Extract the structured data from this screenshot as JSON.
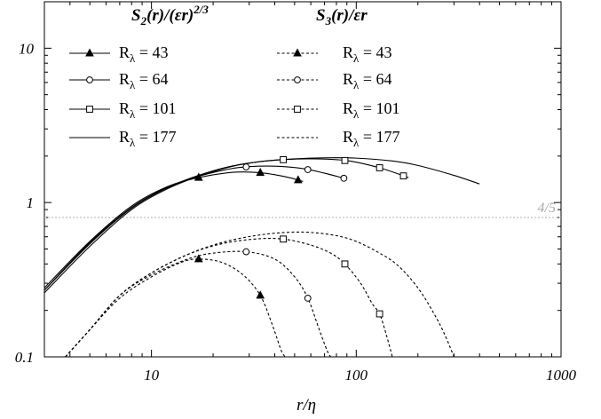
{
  "chart_data": {
    "type": "line",
    "xlabel": "r/η",
    "ylabel": "",
    "xscale": "log",
    "yscale": "log",
    "xlim": [
      3,
      1000
    ],
    "ylim": [
      0.1,
      20
    ],
    "x_ticks": [
      {
        "value": 10,
        "label": "10"
      },
      {
        "value": 100,
        "label": "100"
      },
      {
        "value": 1000,
        "label": "1000"
      }
    ],
    "y_ticks": [
      {
        "value": 0.1,
        "label": "0.1"
      },
      {
        "value": 1,
        "label": "1"
      },
      {
        "value": 10,
        "label": "10"
      }
    ],
    "grid": false,
    "legend_placement": "top",
    "legend_headings": {
      "s2": "S2(r)/(εr)2/3",
      "s3": "S3(r)/εr"
    },
    "legend_heading_parts": {
      "s2": {
        "s": "S",
        "sub": "2",
        "mid": "(r)/(εr)",
        "sup": "2/3"
      },
      "s3": {
        "s": "S",
        "sub": "3",
        "mid": "(r)/εr"
      }
    },
    "reference_line": {
      "y": 0.8,
      "label": "4/5",
      "color": "#b0b0b0"
    },
    "series": [
      {
        "name": "Rλ = 43",
        "legend_prefix": "R",
        "legend_sub": "λ",
        "legend_value": " = 43",
        "group": "S2",
        "line_style": "solid",
        "marker": "triangle",
        "x": [
          3,
          5,
          8,
          12,
          17,
          25,
          34,
          45,
          55
        ],
        "y": [
          0.28,
          0.56,
          0.95,
          1.27,
          1.45,
          1.57,
          1.56,
          1.47,
          1.37
        ],
        "marker_x": [
          17,
          34,
          52
        ]
      },
      {
        "name": "Rλ = 64",
        "legend_prefix": "R",
        "legend_sub": "λ",
        "legend_value": " = 64",
        "group": "S2",
        "line_style": "solid",
        "marker": "circle",
        "x": [
          3,
          5,
          8,
          12,
          17,
          24,
          30,
          40,
          55,
          70,
          90
        ],
        "y": [
          0.27,
          0.55,
          0.93,
          1.26,
          1.48,
          1.65,
          1.71,
          1.72,
          1.66,
          1.55,
          1.42
        ],
        "marker_x": [
          29,
          58,
          87
        ]
      },
      {
        "name": "Rλ = 101",
        "legend_prefix": "R",
        "legend_sub": "λ",
        "legend_value": " = 101",
        "group": "S2",
        "line_style": "solid",
        "marker": "square",
        "x": [
          3,
          5,
          8,
          12,
          17,
          25,
          35,
          45,
          60,
          90,
          130,
          180
        ],
        "y": [
          0.27,
          0.54,
          0.92,
          1.25,
          1.5,
          1.73,
          1.85,
          1.9,
          1.92,
          1.87,
          1.68,
          1.45
        ],
        "marker_x": [
          44,
          88,
          130,
          170
        ]
      },
      {
        "name": "Rλ = 177",
        "legend_prefix": "R",
        "legend_sub": "λ",
        "legend_value": " = 177",
        "group": "S2",
        "line_style": "solid",
        "marker": "none",
        "x": [
          3,
          5,
          8,
          12,
          17,
          25,
          35,
          50,
          70,
          100,
          150,
          200,
          300,
          400
        ],
        "y": [
          0.26,
          0.52,
          0.9,
          1.23,
          1.48,
          1.72,
          1.85,
          1.92,
          1.95,
          1.94,
          1.86,
          1.74,
          1.5,
          1.32
        ],
        "marker_x": []
      },
      {
        "name": "Rλ = 43",
        "legend_prefix": "R",
        "legend_sub": "λ",
        "legend_value": " = 43",
        "group": "S3",
        "line_style": "dashed",
        "marker": "triangle",
        "x": [
          3.8,
          5,
          7,
          10,
          14,
          17,
          22,
          28,
          34,
          39,
          43,
          45
        ],
        "y": [
          0.1,
          0.15,
          0.24,
          0.33,
          0.41,
          0.43,
          0.41,
          0.34,
          0.25,
          0.16,
          0.11,
          0.1
        ],
        "marker_x": [
          17,
          34
        ]
      },
      {
        "name": "Rλ = 64",
        "legend_prefix": "R",
        "legend_sub": "λ",
        "legend_value": " = 64",
        "group": "S3",
        "line_style": "dashed",
        "marker": "circle",
        "x": [
          3.8,
          5,
          7,
          10,
          15,
          20,
          29,
          40,
          50,
          58,
          66,
          72,
          75
        ],
        "y": [
          0.1,
          0.15,
          0.25,
          0.34,
          0.43,
          0.47,
          0.48,
          0.43,
          0.33,
          0.24,
          0.15,
          0.11,
          0.1
        ],
        "marker_x": [
          29,
          58
        ]
      },
      {
        "name": "Rλ = 101",
        "legend_prefix": "R",
        "legend_sub": "λ",
        "legend_value": " = 101",
        "group": "S3",
        "line_style": "dashed",
        "marker": "square",
        "x": [
          3.8,
          5,
          7,
          10,
          15,
          22,
          32,
          44,
          60,
          75,
          88,
          105,
          120,
          130,
          140,
          150
        ],
        "y": [
          0.1,
          0.15,
          0.25,
          0.35,
          0.46,
          0.54,
          0.58,
          0.58,
          0.53,
          0.47,
          0.4,
          0.3,
          0.22,
          0.19,
          0.14,
          0.1
        ],
        "marker_x": [
          44,
          88,
          130
        ]
      },
      {
        "name": "Rλ = 177",
        "legend_prefix": "R",
        "legend_sub": "λ",
        "legend_value": " = 177",
        "group": "S3",
        "line_style": "dashed",
        "marker": "none",
        "x": [
          3.8,
          5,
          7,
          10,
          15,
          22,
          32,
          45,
          60,
          80,
          100,
          130,
          160,
          200,
          240,
          270,
          300
        ],
        "y": [
          0.1,
          0.15,
          0.25,
          0.35,
          0.46,
          0.55,
          0.61,
          0.64,
          0.64,
          0.61,
          0.56,
          0.47,
          0.39,
          0.28,
          0.19,
          0.14,
          0.1
        ],
        "marker_x": []
      }
    ]
  }
}
